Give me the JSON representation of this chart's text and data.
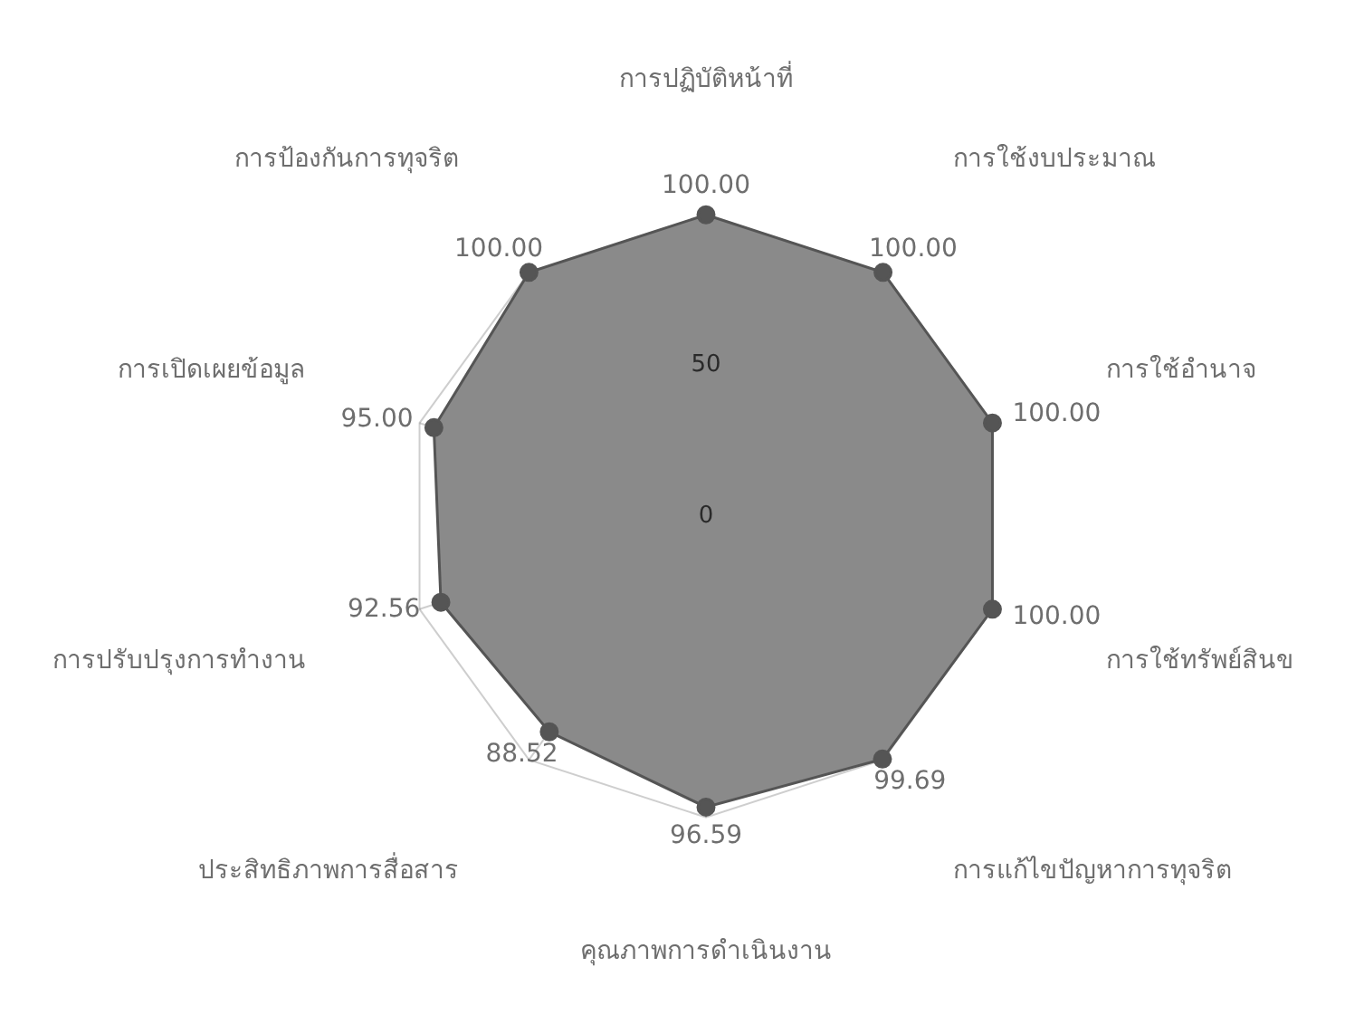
{
  "chart_data": {
    "type": "radar",
    "categories": [
      "การปฏิบัติหน้าที่",
      "การใช้งบประมาณ",
      "การใช้อำนาจ",
      "การใช้ทรัพย์สินข",
      "การแก้ไขปัญหาการทุจริต",
      "คุณภาพการดำเนินงาน",
      "ประสิทธิภาพการสื่อสาร",
      "การปรับปรุงการทำงาน",
      "การเปิดเผยข้อมูล",
      "การป้องกันการทุจริต"
    ],
    "series": [
      {
        "color": "#8a8a8a",
        "values": [
          100,
          100,
          100,
          100,
          99.69,
          96.59,
          88.52,
          92.56,
          95,
          100
        ],
        "value_labels": [
          "100.00",
          "100.00",
          "100.00",
          "100.00",
          "99.69",
          "96.59",
          "88.52",
          "92.56",
          "95.00",
          "100.00"
        ]
      }
    ],
    "ylim": [
      0,
      100
    ],
    "yticks": [
      0,
      50
    ],
    "grid": true,
    "marker": "circle",
    "legend": false
  }
}
